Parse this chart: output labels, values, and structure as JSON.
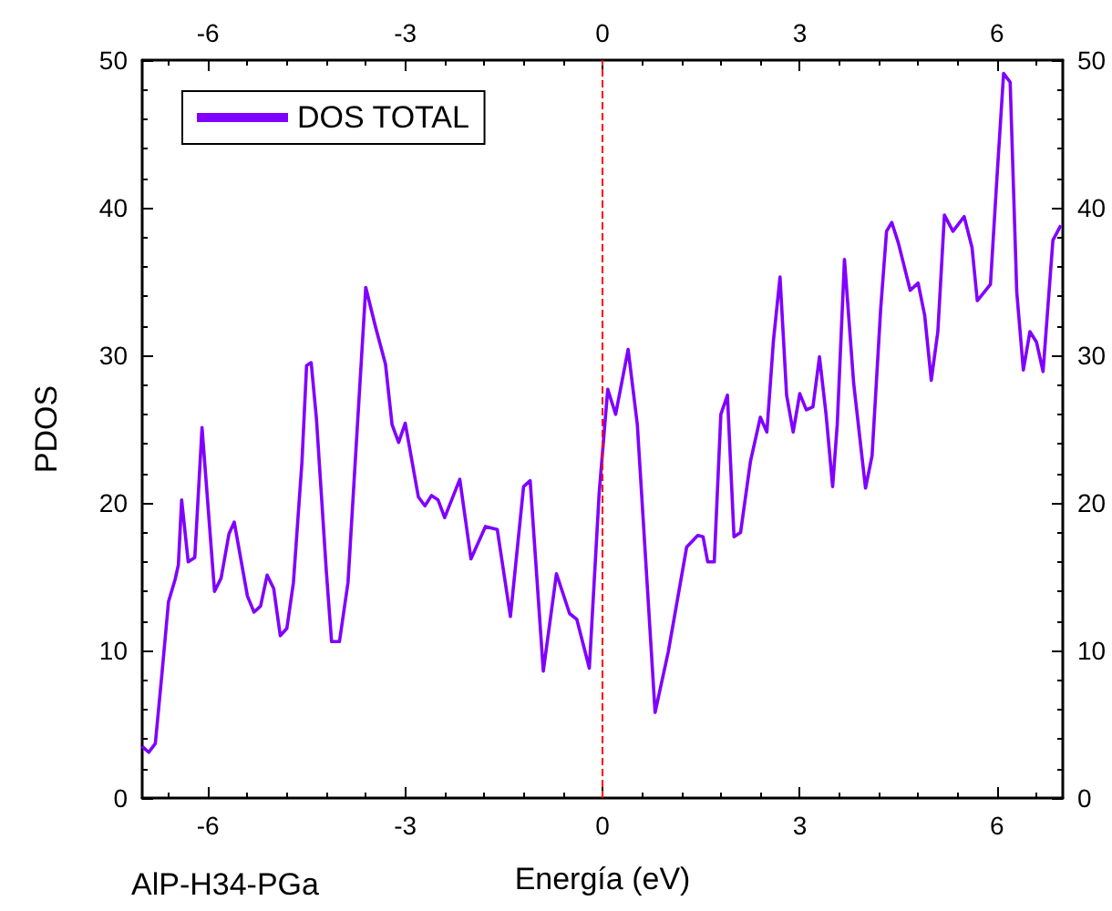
{
  "chart_data": {
    "type": "line",
    "xlabel": "Energía (eV)",
    "ylabel": "PDOS",
    "annotations": [
      "AlP-H34-PGa"
    ],
    "xlim": [
      -7,
      7
    ],
    "xticks": [
      -6,
      -3,
      0,
      3,
      6
    ],
    "x2lim": [
      -7,
      7
    ],
    "x2ticks": [
      -6,
      -3,
      0,
      3,
      6
    ],
    "ylim": [
      0,
      50
    ],
    "yticks": [
      0,
      10,
      20,
      30,
      40,
      50
    ],
    "y2lim": [
      0,
      50
    ],
    "y2ticks": [
      0,
      10,
      20,
      30,
      40,
      50
    ],
    "grid": false,
    "legend": "top left",
    "marker": "none",
    "line_style": "solid",
    "ref_lines": [
      {
        "axis": "x",
        "value": 0,
        "label": null,
        "color": "#ff0000",
        "line_style": "dashed"
      }
    ],
    "series": [
      {
        "name": "DOS TOTAL",
        "color": "#8000ff",
        "x": [
          -7,
          -6.9,
          -6.8,
          -6.7,
          -6.6,
          -6.5,
          -6.45,
          -6.4,
          -6.3,
          -6.2,
          -6.09,
          -5.9,
          -5.8,
          -5.68,
          -5.6,
          -5.4,
          -5.3,
          -5.2,
          -5.1,
          -5.0,
          -4.9,
          -4.8,
          -4.7,
          -4.57,
          -4.5,
          -4.43,
          -4.35,
          -4.2,
          -4.12,
          -4.0,
          -3.87,
          -3.76,
          -3.6,
          -3.45,
          -3.3,
          -3.2,
          -3.1,
          -3.0,
          -2.8,
          -2.7,
          -2.6,
          -2.5,
          -2.4,
          -2.17,
          -2.0,
          -1.78,
          -1.6,
          -1.4,
          -1.2,
          -1.1,
          -0.9,
          -0.7,
          -0.5,
          -0.39,
          -0.2,
          -0.05,
          0.08,
          0.2,
          0.39,
          0.53,
          0.8,
          1.0,
          1.28,
          1.45,
          1.53,
          1.6,
          1.7,
          1.8,
          1.9,
          2.0,
          2.1,
          2.25,
          2.4,
          2.5,
          2.6,
          2.7,
          2.8,
          2.9,
          3.0,
          3.1,
          3.2,
          3.3,
          3.4,
          3.5,
          3.57,
          3.68,
          3.82,
          4.0,
          4.1,
          4.23,
          4.32,
          4.4,
          4.5,
          4.68,
          4.8,
          4.9,
          5.0,
          5.1,
          5.2,
          5.33,
          5.5,
          5.62,
          5.7,
          5.9,
          6.0,
          6.1,
          6.2,
          6.3,
          6.4,
          6.5,
          6.6,
          6.7,
          6.85,
          6.97
        ],
        "values": [
          3.5,
          3.1,
          3.7,
          8.4,
          13.3,
          14.8,
          15.8,
          20.2,
          16.0,
          16.3,
          25.1,
          14.0,
          14.9,
          17.9,
          18.7,
          13.7,
          12.6,
          13.0,
          15.1,
          14.2,
          11.0,
          11.5,
          14.6,
          22.8,
          29.3,
          29.5,
          25.7,
          15.4,
          10.6,
          10.6,
          14.6,
          22.8,
          34.6,
          31.9,
          29.4,
          25.3,
          24.1,
          25.4,
          20.4,
          19.8,
          20.5,
          20.2,
          19.0,
          21.6,
          16.2,
          18.4,
          18.2,
          12.3,
          21.1,
          21.5,
          8.6,
          15.2,
          12.5,
          12.1,
          8.8,
          20.7,
          27.7,
          26.0,
          30.4,
          25.3,
          5.8,
          9.9,
          17.0,
          17.8,
          17.7,
          16.0,
          16.0,
          26.0,
          27.3,
          17.7,
          18.0,
          22.8,
          25.8,
          24.8,
          31.0,
          35.3,
          27.3,
          24.8,
          27.4,
          26.3,
          26.5,
          29.9,
          26.0,
          21.1,
          25.3,
          36.5,
          28.1,
          21.0,
          23.2,
          33.1,
          38.4,
          39.0,
          37.6,
          34.4,
          34.9,
          32.7,
          28.3,
          31.6,
          39.5,
          38.4,
          39.4,
          37.3,
          33.7,
          34.8,
          42.1,
          49.1,
          48.5,
          34.3,
          29.0,
          31.6,
          30.9,
          28.9,
          37.8,
          38.8
        ]
      }
    ]
  }
}
